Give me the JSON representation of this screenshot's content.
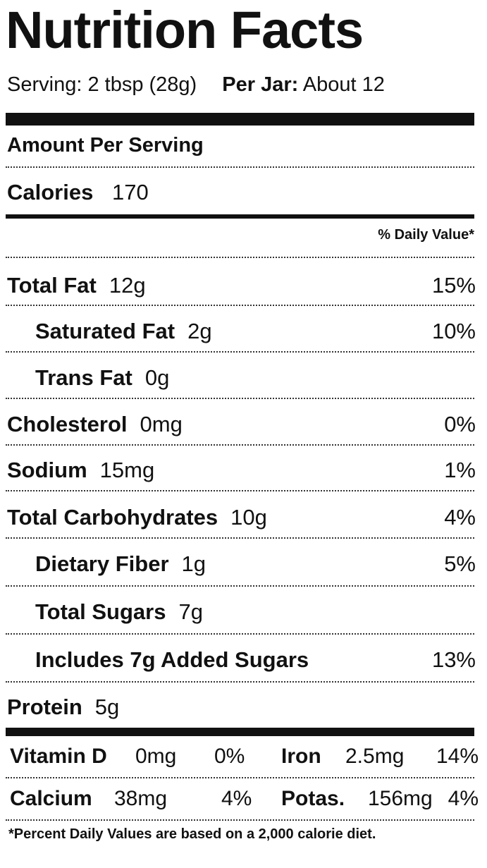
{
  "title": "Nutrition Facts",
  "serving": {
    "label": "Serving:",
    "size": "2 tbsp (28g)",
    "per_jar_label": "Per Jar:",
    "per_jar_value": "About 12"
  },
  "amount_per_serving": "Amount Per Serving",
  "calories": {
    "label": "Calories",
    "value": "170"
  },
  "daily_value_header": "% Daily Value*",
  "nutrients": [
    {
      "name": "Total Fat",
      "amount": "12g",
      "dv": "15%"
    },
    {
      "name": "Saturated Fat",
      "amount": "2g",
      "dv": "10%"
    },
    {
      "name": "Trans Fat",
      "amount": "0g",
      "dv": ""
    },
    {
      "name": "Cholesterol",
      "amount": "0mg",
      "dv": "0%"
    },
    {
      "name": "Sodium",
      "amount": "15mg",
      "dv": "1%"
    },
    {
      "name": "Total Carbohydrates",
      "amount": "10g",
      "dv": "4%"
    },
    {
      "name": "Dietary Fiber",
      "amount": "1g",
      "dv": "5%"
    },
    {
      "name": "Total Sugars",
      "amount": "7g",
      "dv": ""
    },
    {
      "name": "Includes 7g Added Sugars",
      "amount": "",
      "dv": "13%"
    },
    {
      "name": "Protein",
      "amount": "5g",
      "dv": ""
    }
  ],
  "vitamins": [
    {
      "name": "Vitamin D",
      "amount": "0mg",
      "dv": "0%"
    },
    {
      "name": "Iron",
      "amount": "2.5mg",
      "dv": "14%"
    },
    {
      "name": "Calcium",
      "amount": "38mg",
      "dv": "4%"
    },
    {
      "name": "Potas.",
      "amount": "156mg",
      "dv": "4%"
    }
  ],
  "footnote": "*Percent Daily Values are based on a 2,000 calorie diet."
}
